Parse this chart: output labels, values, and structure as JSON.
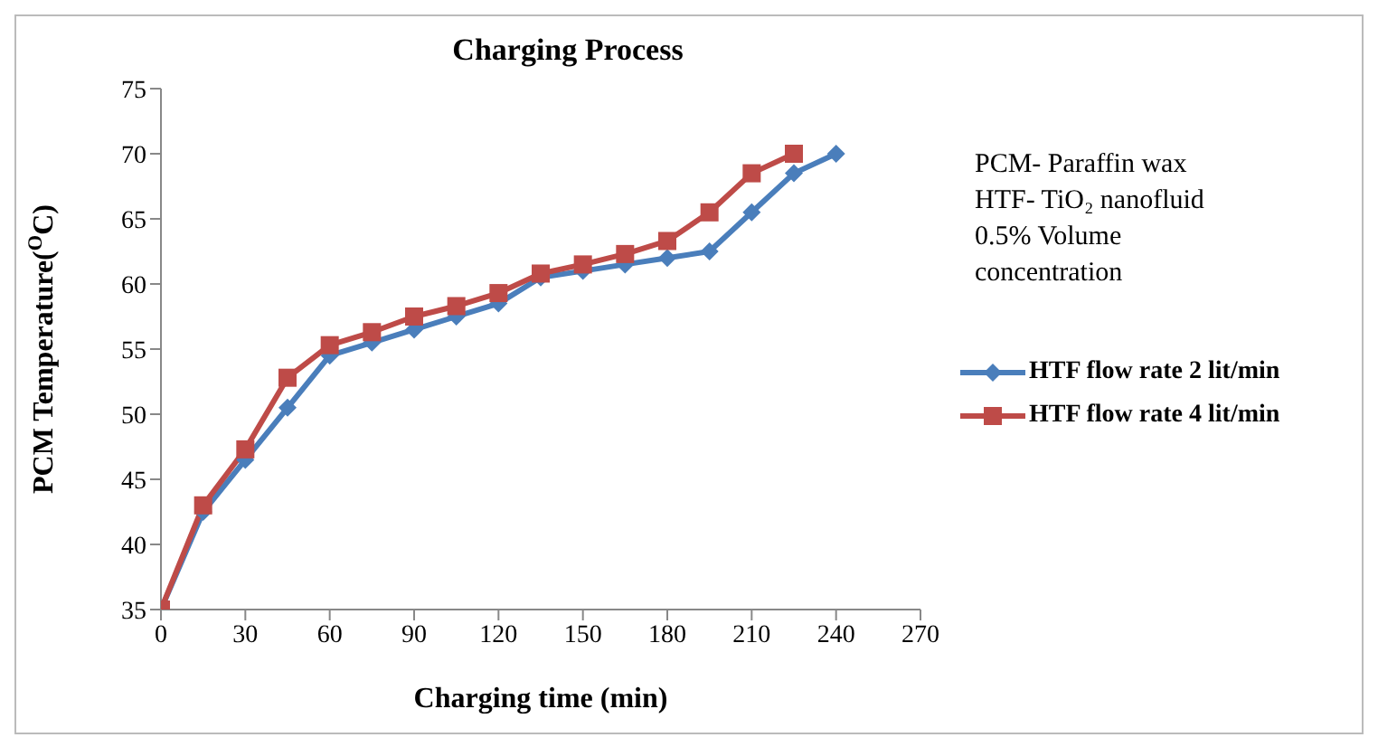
{
  "chart_data": {
    "type": "line",
    "title": "Charging Process",
    "xlabel": "Charging time (min)",
    "ylabel": "PCM Temperature($^{O}$C)",
    "annotations": [
      "PCM- Paraffin wax\nHTF- TiO₂ nanofluid\n0.5% Volume\nconcentration"
    ],
    "x": [
      0,
      15,
      30,
      45,
      60,
      75,
      90,
      105,
      120,
      135,
      150,
      165,
      180,
      195,
      210,
      225,
      240
    ],
    "series": [
      {
        "name": "HTF flow rate 2 lit/min",
        "color": "#4a7ebb",
        "marker": "diamond",
        "values": [
          35,
          42.5,
          46.5,
          50.5,
          54.5,
          55.5,
          56.5,
          57.5,
          58.5,
          60.5,
          61,
          61.5,
          62,
          62.5,
          65.5,
          68.5,
          70
        ]
      },
      {
        "name": "HTF flow rate 4 lit/min",
        "color": "#be4b48",
        "marker": "square",
        "values": [
          35,
          43,
          47.3,
          52.8,
          55.3,
          56.3,
          57.5,
          58.3,
          59.3,
          60.8,
          61.5,
          62.3,
          63.3,
          65.5,
          68.5,
          70,
          null
        ]
      }
    ],
    "xlim": [
      0,
      270
    ],
    "xticks": [
      0,
      30,
      60,
      90,
      120,
      150,
      180,
      210,
      240,
      270
    ],
    "ylim": [
      35,
      75
    ],
    "yticks": [
      35,
      40,
      45,
      50,
      55,
      60,
      65,
      70,
      75
    ],
    "grid": false,
    "legend": "right",
    "line_style": "solid"
  }
}
